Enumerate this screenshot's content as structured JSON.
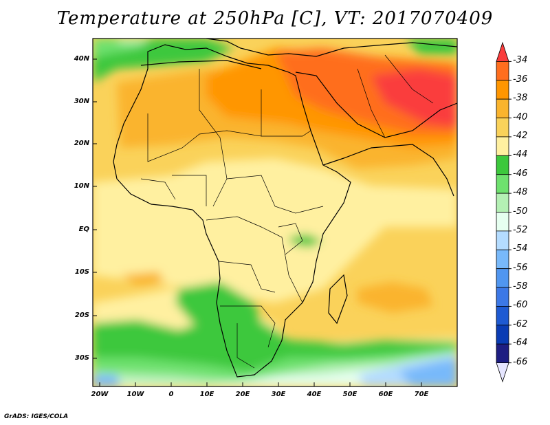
{
  "title": "Temperature at 250hPa [C], VT: 2017070409",
  "credit": "GrADS: IGES/COLA",
  "map": {
    "lat_labels": [
      "40N",
      "30N",
      "20N",
      "10N",
      "EQ",
      "10S",
      "20S",
      "30S"
    ],
    "lon_labels": [
      "20W",
      "10W",
      "0",
      "10E",
      "20E",
      "30E",
      "40E",
      "50E",
      "60E",
      "70E"
    ]
  },
  "colorbar": {
    "labels": [
      "-34",
      "-36",
      "-38",
      "-40",
      "-42",
      "-44",
      "-46",
      "-48",
      "-50",
      "-52",
      "-54",
      "-56",
      "-58",
      "-60",
      "-62",
      "-64",
      "-66"
    ],
    "colors": [
      "#fa3c3c",
      "#ff6e1e",
      "#ff9600",
      "#fab42d",
      "#fad25a",
      "#fff0a0",
      "#3cc83c",
      "#6ee16e",
      "#b4f0b4",
      "#e6fff0",
      "#b4dcff",
      "#78b9fa",
      "#5096f0",
      "#3c78e6",
      "#1e5ad2",
      "#0a3cb4",
      "#1e1e82",
      "#e6e6ff"
    ]
  }
}
